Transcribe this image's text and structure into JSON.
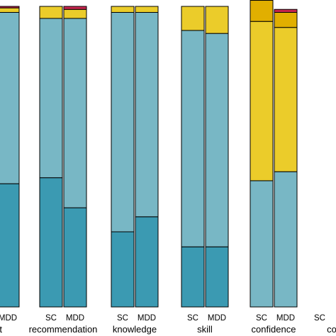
{
  "chart_data": {
    "type": "bar",
    "stacked": true,
    "normalized": true,
    "ylim": [
      0,
      1
    ],
    "legend": "none",
    "grid": false,
    "colors": [
      "#3b9ab2",
      "#78b7c5",
      "#ebcc2a",
      "#e1af00",
      "#c7254e"
    ],
    "groups": [
      {
        "label": "ent",
        "bars": [
          {
            "label": "",
            "values": [
              0.0,
              0.0,
              0.0,
              0.0,
              0.0
            ]
          },
          {
            "label": "MDD",
            "values": [
              0.41,
              0.57,
              0.015,
              0.0,
              0.005
            ]
          }
        ]
      },
      {
        "label": "recommendation",
        "bars": [
          {
            "label": "SC",
            "values": [
              0.43,
              0.53,
              0.04,
              0.0,
              0.0
            ]
          },
          {
            "label": "MDD",
            "values": [
              0.33,
              0.63,
              0.03,
              0.0,
              0.01
            ]
          }
        ]
      },
      {
        "label": "knowledge",
        "bars": [
          {
            "label": "SC",
            "values": [
              0.25,
              0.73,
              0.02,
              0.0,
              0.0
            ]
          },
          {
            "label": "MDD",
            "values": [
              0.3,
              0.68,
              0.02,
              0.0,
              0.0
            ]
          }
        ]
      },
      {
        "label": "skill",
        "bars": [
          {
            "label": "SC",
            "values": [
              0.2,
              0.72,
              0.08,
              0.0,
              0.0
            ]
          },
          {
            "label": "MDD",
            "values": [
              0.2,
              0.71,
              0.09,
              0.0,
              0.0
            ]
          }
        ]
      },
      {
        "label": "confidence",
        "bars": [
          {
            "label": "SC",
            "values": [
              0.0,
              0.42,
              0.53,
              0.07,
              0.0
            ]
          },
          {
            "label": "MDD",
            "values": [
              0.0,
              0.45,
              0.48,
              0.05,
              0.01
            ]
          }
        ]
      },
      {
        "label": "co",
        "bars": [
          {
            "label": "SC",
            "values": [
              0.0,
              0.0,
              0.0,
              0.0,
              0.0
            ]
          },
          {
            "label": "",
            "values": [
              0.0,
              0.0,
              0.0,
              0.0,
              0.0
            ]
          }
        ]
      }
    ]
  }
}
